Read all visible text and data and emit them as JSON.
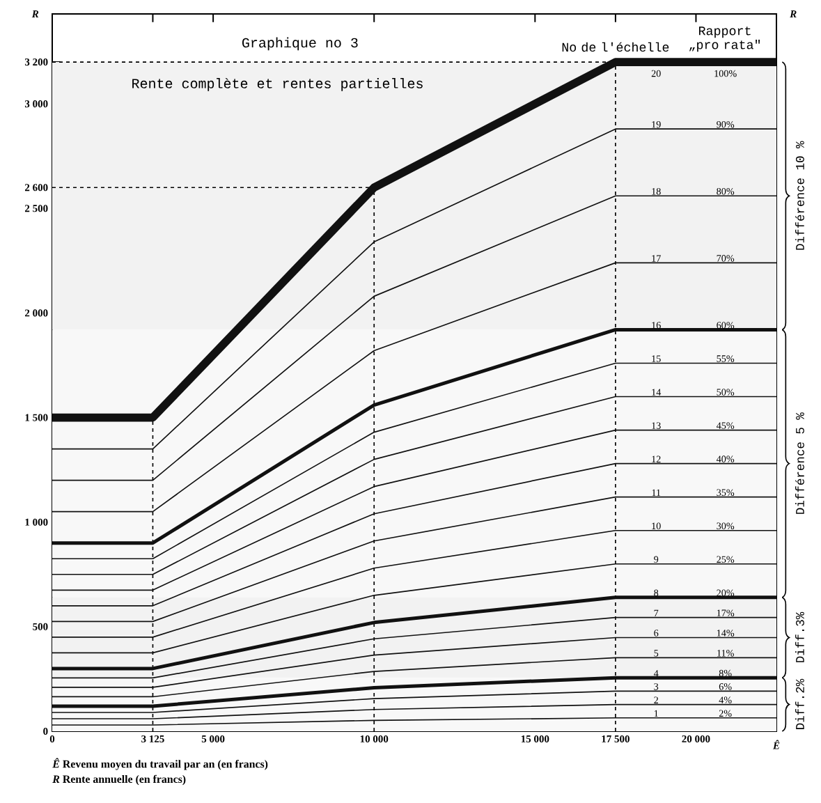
{
  "chart_data": {
    "type": "line",
    "title": "Graphique no 3",
    "subtitle": "Rente complète et rentes partielles",
    "xlabel": "*Ê* Revenu moyen du travail par an (en francs)",
    "annotations": [
      "No de l'échelle",
      "Rapport „pro rata\"",
      "*R*",
      "*R*",
      "*Ê*",
      "*R* Rente annuelle (en francs)",
      {
        "text": "2%",
        "y": 64
      },
      {
        "text": "4%",
        "y": 128
      },
      {
        "text": "6%",
        "y": 192
      },
      {
        "text": "8%",
        "y": 256
      },
      {
        "text": "11%",
        "y": 352
      },
      {
        "text": "14%",
        "y": 448
      },
      {
        "text": "17%",
        "y": 544
      },
      {
        "text": "20%",
        "y": 640
      },
      {
        "text": "25%",
        "y": 800
      },
      {
        "text": "30%",
        "y": 960
      },
      {
        "text": "35%",
        "y": 1120
      },
      {
        "text": "40%",
        "y": 1280
      },
      {
        "text": "45%",
        "y": 1440
      },
      {
        "text": "50%",
        "y": 1600
      },
      {
        "text": "55%",
        "y": 1760
      },
      {
        "text": "60%",
        "y": 1920
      },
      {
        "text": "70%",
        "y": 2240
      },
      {
        "text": "80%",
        "y": 2560
      },
      {
        "text": "90%",
        "y": 2880
      },
      {
        "text": "100%",
        "y": 3200
      }
    ],
    "x": [
      0,
      3125,
      10000,
      17500,
      22500
    ],
    "xlim": [
      0,
      22500
    ],
    "ylim": [
      0,
      3430
    ],
    "xticks": [
      0,
      {
        "value": 3125,
        "label": "3 125"
      },
      {
        "value": 5000,
        "label": "5 000"
      },
      {
        "value": 10000,
        "label": "10 000"
      },
      {
        "value": 15000,
        "label": "15 000"
      },
      {
        "value": 17500,
        "label": "17 500"
      },
      {
        "value": 20000,
        "label": "20 000"
      }
    ],
    "yticks": [
      0,
      500,
      {
        "value": 1000,
        "label": "1 000"
      },
      {
        "value": 1500,
        "label": "1 500"
      },
      {
        "value": 2000,
        "label": "2 000"
      },
      {
        "value": 2500,
        "label": "2 500"
      },
      {
        "value": 2600,
        "label": "2 600"
      },
      {
        "value": 3000,
        "label": "3 000"
      },
      {
        "value": 3200,
        "label": "3 200"
      }
    ],
    "grid": false,
    "marker": "none",
    "series": [
      {
        "name": "1",
        "color": "#111111",
        "values": [
          30,
          30,
          52,
          64,
          64
        ]
      },
      {
        "name": "2",
        "color": "#111111",
        "values": [
          60,
          60,
          104,
          128,
          128
        ]
      },
      {
        "name": "3",
        "color": "#111111",
        "values": [
          90,
          90,
          156,
          192,
          192
        ]
      },
      {
        "name": "4",
        "color": "#111111",
        "values": [
          120,
          120,
          208,
          256,
          256
        ]
      },
      {
        "name": "5",
        "color": "#111111",
        "values": [
          165,
          165,
          286,
          352,
          352
        ]
      },
      {
        "name": "6",
        "color": "#111111",
        "values": [
          210,
          210,
          364,
          448,
          448
        ]
      },
      {
        "name": "7",
        "color": "#111111",
        "values": [
          255,
          255,
          442,
          544,
          544
        ]
      },
      {
        "name": "8",
        "color": "#111111",
        "values": [
          300,
          300,
          520,
          640,
          640
        ]
      },
      {
        "name": "9",
        "color": "#111111",
        "values": [
          375,
          375,
          650,
          800,
          800
        ]
      },
      {
        "name": "10",
        "color": "#111111",
        "values": [
          450,
          450,
          780,
          960,
          960
        ]
      },
      {
        "name": "11",
        "color": "#111111",
        "values": [
          525,
          525,
          910,
          1120,
          1120
        ]
      },
      {
        "name": "12",
        "color": "#111111",
        "values": [
          600,
          600,
          1040,
          1280,
          1280
        ]
      },
      {
        "name": "13",
        "color": "#111111",
        "values": [
          675,
          675,
          1170,
          1440,
          1440
        ]
      },
      {
        "name": "14",
        "color": "#111111",
        "values": [
          750,
          750,
          1300,
          1600,
          1600
        ]
      },
      {
        "name": "15",
        "color": "#111111",
        "values": [
          825,
          825,
          1430,
          1760,
          1760
        ]
      },
      {
        "name": "16",
        "color": "#111111",
        "values": [
          900,
          900,
          1560,
          1920,
          1920
        ]
      },
      {
        "name": "17",
        "color": "#111111",
        "values": [
          1050,
          1050,
          1820,
          2240,
          2240
        ]
      },
      {
        "name": "18",
        "color": "#111111",
        "values": [
          1200,
          1200,
          2080,
          2560,
          2560
        ]
      },
      {
        "name": "19",
        "color": "#111111",
        "values": [
          1350,
          1350,
          2340,
          2880,
          2880
        ]
      },
      {
        "name": "20",
        "color": "#111111",
        "values": [
          1500,
          1500,
          2600,
          3200,
          3200
        ]
      }
    ],
    "ref_lines": [
      {
        "axis": "x",
        "value": 3125,
        "line_style": "dashed"
      },
      {
        "axis": "x",
        "value": 10000,
        "line_style": "dashed"
      },
      {
        "axis": "x",
        "value": 17500,
        "line_style": "dashed"
      },
      {
        "axis": "y",
        "value": 2600,
        "line_style": "dashed"
      },
      {
        "axis": "y",
        "value": 3200,
        "line_style": "dashed"
      }
    ],
    "bands": [
      {
        "axis": "y",
        "from": 1920,
        "to": 3200,
        "label": "Différence 10 %",
        "color": "#f2f2f2"
      },
      {
        "axis": "y",
        "from": 640,
        "to": 1920,
        "label": "Différence 5 %",
        "color": "#f8f8f8"
      },
      {
        "axis": "y",
        "from": 256,
        "to": 640,
        "label": "Diff.3%",
        "color": "#f2f2f2"
      },
      {
        "axis": "y",
        "from": 0,
        "to": 256,
        "label": "Diff.2%",
        "color": "#f8f8f8"
      }
    ]
  }
}
